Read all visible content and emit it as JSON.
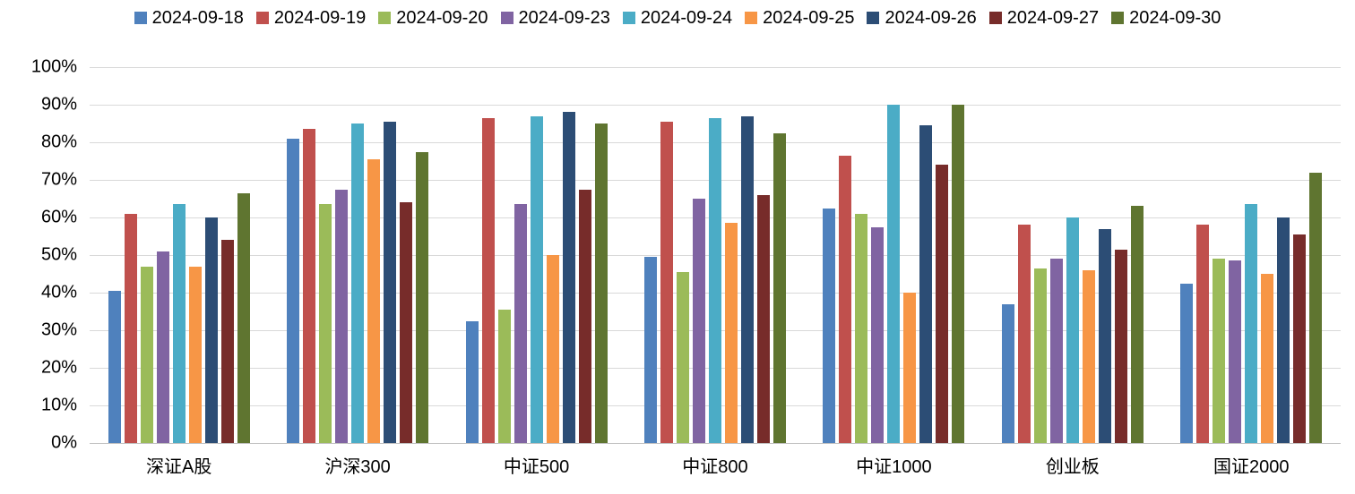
{
  "chart_data": {
    "type": "bar",
    "title": "",
    "xlabel": "",
    "ylabel": "",
    "ylim": [
      0,
      100
    ],
    "grid": true,
    "legend_position": "top",
    "yticks": [
      "0%",
      "10%",
      "20%",
      "30%",
      "40%",
      "50%",
      "60%",
      "70%",
      "80%",
      "90%",
      "100%"
    ],
    "categories": [
      "深证A股",
      "沪深300",
      "中证500",
      "中证800",
      "中证1000",
      "创业板",
      "国证2000"
    ],
    "series": [
      {
        "name": "2024-09-18",
        "color": "#4F81BD",
        "values": [
          40.5,
          81,
          32.5,
          49.5,
          62.5,
          37,
          42.5
        ]
      },
      {
        "name": "2024-09-19",
        "color": "#C0504D",
        "values": [
          61,
          83.5,
          86.5,
          85.5,
          76.5,
          58,
          58
        ]
      },
      {
        "name": "2024-09-20",
        "color": "#9BBB59",
        "values": [
          47,
          63.5,
          35.5,
          45.5,
          61,
          46.5,
          49
        ]
      },
      {
        "name": "2024-09-23",
        "color": "#8064A2",
        "values": [
          51,
          67.5,
          63.5,
          65,
          57.5,
          49,
          48.5
        ]
      },
      {
        "name": "2024-09-24",
        "color": "#4BACC6",
        "values": [
          63.5,
          85,
          87,
          86.5,
          90,
          60,
          63.5
        ]
      },
      {
        "name": "2024-09-25",
        "color": "#F79646",
        "values": [
          47,
          75.5,
          50,
          58.5,
          40,
          46,
          45
        ]
      },
      {
        "name": "2024-09-26",
        "color": "#2C4D75",
        "values": [
          60,
          85.5,
          88,
          87,
          84.5,
          57,
          60
        ]
      },
      {
        "name": "2024-09-27",
        "color": "#772C2A",
        "values": [
          54,
          64,
          67.5,
          66,
          74,
          51.5,
          55.5
        ]
      },
      {
        "name": "2024-09-30",
        "color": "#5F7530",
        "values": [
          66.5,
          77.5,
          85,
          82.5,
          90,
          63,
          72
        ]
      }
    ],
    "grid_color": "#D9D9D9",
    "axis_color": "#BFBFBF",
    "text_color": "#000000"
  }
}
